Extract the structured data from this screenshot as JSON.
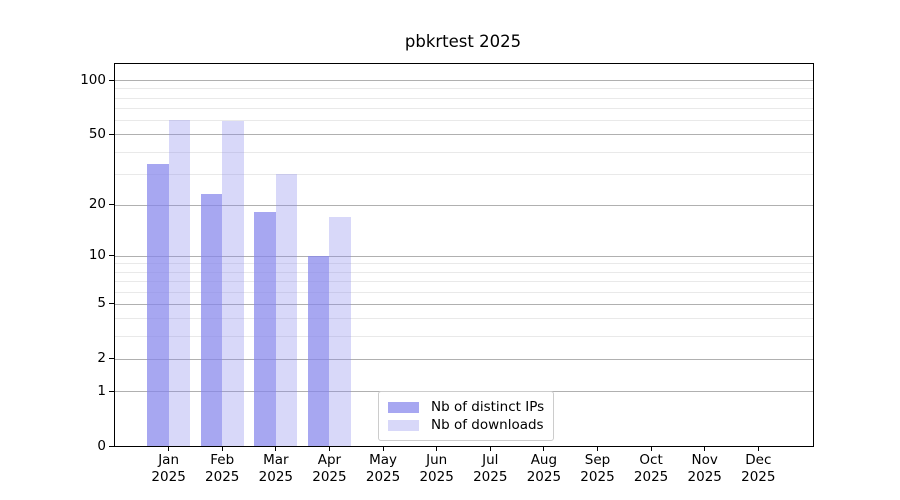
{
  "title": "pbkrtest 2025",
  "chart_data": {
    "type": "bar",
    "title": "pbkrtest 2025",
    "categories": [
      "Jan",
      "Feb",
      "Mar",
      "Apr",
      "May",
      "Jun",
      "Jul",
      "Aug",
      "Sep",
      "Oct",
      "Nov",
      "Dec"
    ],
    "year": "2025",
    "series": [
      {
        "name": "Nb of distinct IPs",
        "color": "rgba(133,133,236,0.72)",
        "values": [
          34,
          23,
          18,
          10,
          null,
          null,
          null,
          null,
          null,
          null,
          null,
          null
        ]
      },
      {
        "name": "Nb of downloads",
        "color": "rgba(133,133,236,0.32)",
        "values": [
          60,
          59,
          30,
          17,
          null,
          null,
          null,
          null,
          null,
          null,
          null,
          null
        ]
      }
    ],
    "y_ticks": [
      0,
      1,
      2,
      5,
      10,
      20,
      50,
      100
    ],
    "minor_gridlines": [
      3,
      4,
      6,
      7,
      8,
      9,
      30,
      40,
      60,
      70,
      80,
      90
    ],
    "scale": "log(1+v)",
    "ylim": [
      0,
      123
    ],
    "grid": true,
    "legend_position": "lower-center"
  },
  "colors": {
    "bar_base": "#8585ec",
    "grid_major": "#b0b0b0",
    "grid_minor": "#e9e9e9",
    "axis": "#000000",
    "legend_border": "#cccccc",
    "background": "#ffffff"
  }
}
